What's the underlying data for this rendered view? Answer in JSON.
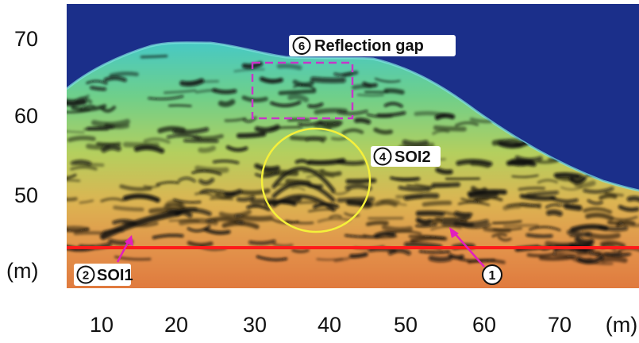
{
  "y_axis": {
    "ticks": [
      "70",
      "60",
      "50"
    ],
    "unit": "(m)"
  },
  "x_axis": {
    "ticks": [
      "10",
      "20",
      "30",
      "40",
      "50",
      "60",
      "70"
    ],
    "unit": "(m)"
  },
  "annotations": {
    "reflection_gap": {
      "number": "6",
      "text": "Reflection gap"
    },
    "soi2": {
      "number": "4",
      "text": "SOI2"
    },
    "soi1": {
      "number": "2",
      "text": "SOI1"
    },
    "marker1": {
      "number": "1"
    }
  },
  "colors": {
    "sky": "#1b2f8a",
    "red_line": "#ff1a1a",
    "yellow_circle": "#f5f03a",
    "magenta": "#e21fbe",
    "gap_box": "#c736c8"
  }
}
